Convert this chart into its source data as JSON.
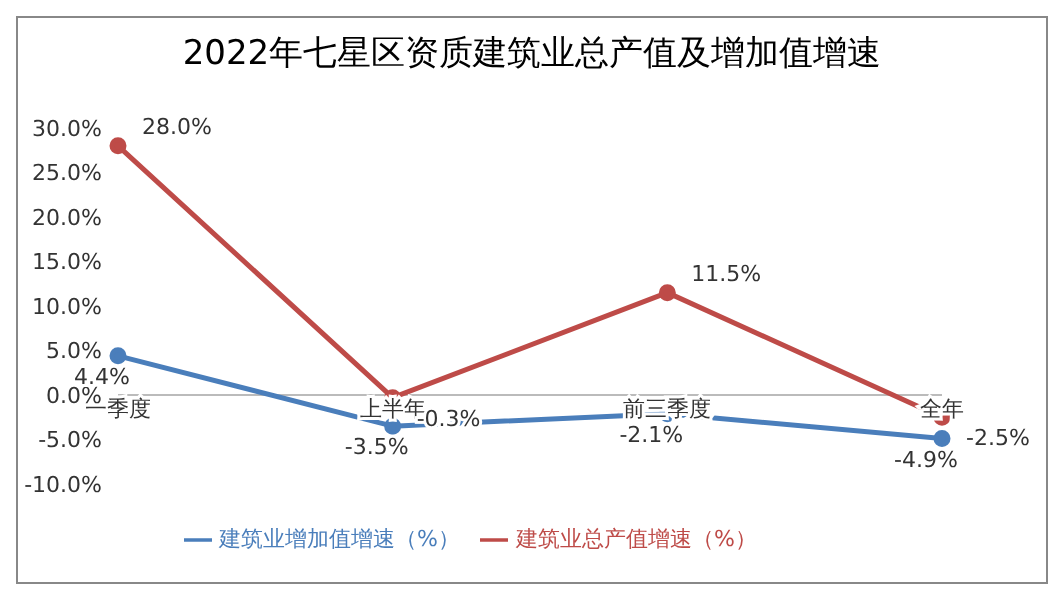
{
  "chart_data": {
    "type": "line",
    "title": "2022年七星区资质建筑业总产值及增加值增速",
    "categories": [
      "一季度",
      "上半年",
      "前三季度",
      "全年"
    ],
    "series": [
      {
        "name": "建筑业增加值增速（%）",
        "color": "#4a7ebb",
        "values": [
          4.4,
          -3.5,
          -2.1,
          -4.9
        ],
        "value_labels": [
          "4.4%",
          "-3.5%",
          "-2.1%",
          "-4.9%"
        ]
      },
      {
        "name": "建筑业总产值增速（%）",
        "color": "#be4b48",
        "values": [
          28.0,
          -0.3,
          11.5,
          -2.5
        ],
        "value_labels": [
          "28.0%",
          "-0.3%",
          "11.5%",
          "-2.5%"
        ]
      }
    ],
    "ylim": [
      -10,
      30
    ],
    "yticks": [
      {
        "value": -10,
        "label": "-10.0%"
      },
      {
        "value": -5,
        "label": "-5.0%"
      },
      {
        "value": 0,
        "label": "0.0%"
      },
      {
        "value": 5,
        "label": "5.0%"
      },
      {
        "value": 10,
        "label": "10.0%"
      },
      {
        "value": 15,
        "label": "15.0%"
      },
      {
        "value": 20,
        "label": "20.0%"
      },
      {
        "value": 25,
        "label": "25.0%"
      },
      {
        "value": 30,
        "label": "30.0%"
      }
    ],
    "grid": false,
    "legend": "bottom",
    "marker": "circle",
    "line_style": "solid"
  }
}
